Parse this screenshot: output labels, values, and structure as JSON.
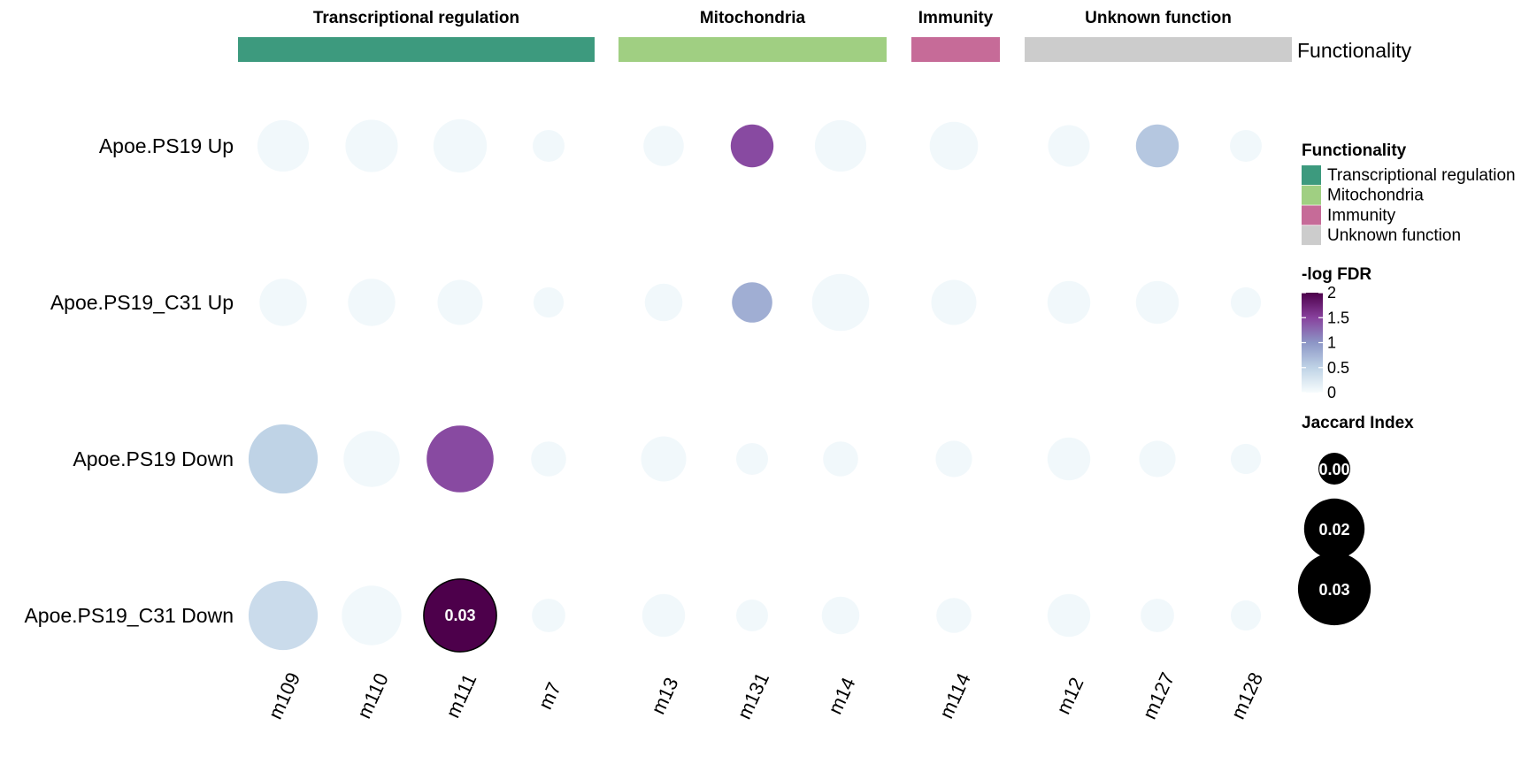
{
  "chart_data": {
    "type": "scatter",
    "subtype": "bubble-grid",
    "annotation_title": "Functionality",
    "groups": [
      {
        "name": "Transcriptional regulation",
        "color": "#3d9a7e",
        "columns": [
          "m109",
          "m110",
          "m111",
          "m7"
        ]
      },
      {
        "name": "Mitochondria",
        "color": "#a0cf82",
        "columns": [
          "m13",
          "m131",
          "m14"
        ]
      },
      {
        "name": "Immunity",
        "color": "#c66b98",
        "columns": [
          "m114"
        ]
      },
      {
        "name": "Unknown function",
        "color": "#cccccc",
        "columns": [
          "m12",
          "m127",
          "m128"
        ]
      }
    ],
    "columns": [
      "m109",
      "m110",
      "m111",
      "m7",
      "m13",
      "m131",
      "m14",
      "m114",
      "m12",
      "m127",
      "m128"
    ],
    "rows": [
      "Apoe.PS19 Up",
      "Apoe.PS19_C31 Up",
      "Apoe.PS19 Down",
      "Apoe.PS19_C31 Down"
    ],
    "jaccard": [
      [
        0.013,
        0.0135,
        0.014,
        0.005,
        0.008,
        0.009,
        0.013,
        0.0115,
        0.0085,
        0.009,
        0.005
      ],
      [
        0.011,
        0.011,
        0.01,
        0.0045,
        0.007,
        0.008,
        0.016,
        0.01,
        0.009,
        0.009,
        0.0045
      ],
      [
        0.0235,
        0.0155,
        0.022,
        0.006,
        0.01,
        0.005,
        0.006,
        0.0065,
        0.009,
        0.0065,
        0.0045
      ],
      [
        0.0235,
        0.0175,
        0.026,
        0.0055,
        0.009,
        0.005,
        0.007,
        0.006,
        0.009,
        0.0055,
        0.0045
      ]
    ],
    "neg_log_fdr": [
      [
        0.05,
        0.05,
        0.05,
        0.05,
        0.05,
        1.45,
        0.05,
        0.05,
        0.05,
        0.6,
        0.05
      ],
      [
        0.05,
        0.05,
        0.05,
        0.05,
        0.05,
        0.8,
        0.05,
        0.05,
        0.05,
        0.05,
        0.05
      ],
      [
        0.5,
        0.05,
        1.45,
        0.05,
        0.05,
        0.05,
        0.05,
        0.05,
        0.05,
        0.05,
        0.05
      ],
      [
        0.4,
        0.05,
        2.0,
        0.05,
        0.05,
        0.05,
        0.05,
        0.05,
        0.05,
        0.05,
        0.05
      ]
    ],
    "cell_labels": [
      {
        "row": 3,
        "col": 2,
        "text": "0.03"
      }
    ],
    "color_legend": {
      "title": "-log FDR",
      "range": [
        0,
        2
      ],
      "ticks": [
        "0",
        "0.5",
        "1",
        "1.5",
        "2"
      ],
      "tick_values": [
        0,
        0.5,
        1,
        1.5,
        2
      ],
      "colors": [
        "#f7fcfd",
        "#bfd3e6",
        "#8c96c6",
        "#88419d",
        "#4d004b"
      ]
    },
    "size_legend": {
      "title": "Jaccard Index",
      "values": [
        0.005,
        0.018,
        0.026
      ],
      "labels": [
        "0.00",
        "0.02",
        "0.03"
      ],
      "color": "#000000"
    },
    "functionality_legend": {
      "title": "Functionality",
      "items": [
        {
          "label": "Transcriptional regulation",
          "color": "#3d9a7e"
        },
        {
          "label": "Mitochondria",
          "color": "#a0cf82"
        },
        {
          "label": "Immunity",
          "color": "#c66b98"
        },
        {
          "label": "Unknown function",
          "color": "#cccccc"
        }
      ]
    }
  }
}
